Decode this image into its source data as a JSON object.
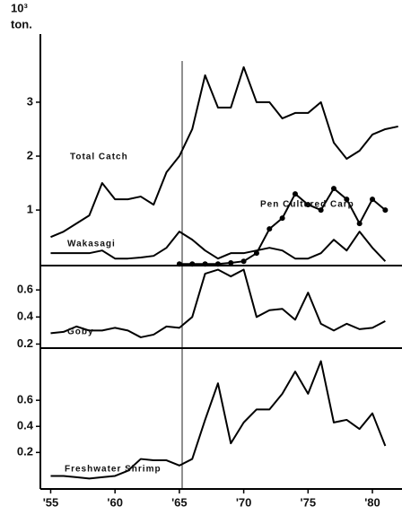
{
  "chart_data": [
    {
      "type": "line",
      "y_unit": "10³",
      "y_unit_2": "ton.",
      "x": [
        1955,
        1956,
        1957,
        1958,
        1959,
        1960,
        1961,
        1962,
        1963,
        1964,
        1965,
        1966,
        1967,
        1968,
        1969,
        1970,
        1971,
        1972,
        1973,
        1974,
        1975,
        1976,
        1977,
        1978,
        1979,
        1980,
        1981,
        1982
      ],
      "xlim": [
        1954.2,
        1982.3
      ],
      "ylim": [
        -0.03,
        4.23
      ],
      "yticks": [
        1,
        2,
        3
      ],
      "series": [
        {
          "name": "Total Catch",
          "color": "#000000",
          "values": [
            0.5,
            0.6,
            0.75,
            0.9,
            1.5,
            1.2,
            1.2,
            1.25,
            1.1,
            1.7,
            2.0,
            2.5,
            3.5,
            2.9,
            2.9,
            3.65,
            3.0,
            3.0,
            2.7,
            2.8,
            2.8,
            3.0,
            2.25,
            1.95,
            2.1,
            2.4,
            2.5,
            2.55
          ]
        },
        {
          "name": "Wakasagi",
          "color": "#000000",
          "values": [
            0.2,
            0.2,
            0.2,
            0.2,
            0.25,
            0.1,
            0.1,
            0.12,
            0.15,
            0.3,
            0.6,
            0.45,
            0.25,
            0.1,
            0.2,
            0.2,
            0.25,
            0.3,
            0.25,
            0.1,
            0.1,
            0.2,
            0.45,
            0.25,
            0.6,
            0.3,
            0.05,
            null
          ]
        },
        {
          "name": "Pen Cultured Carp",
          "color": "#000000",
          "markers": true,
          "values": [
            null,
            null,
            null,
            null,
            null,
            null,
            null,
            null,
            null,
            null,
            0,
            0,
            0,
            0,
            0.02,
            0.05,
            0.2,
            0.65,
            0.85,
            1.3,
            1.1,
            1.0,
            1.4,
            1.2,
            0.75,
            1.2,
            1.0,
            null
          ]
        }
      ]
    },
    {
      "type": "line",
      "x": [
        1955,
        1956,
        1957,
        1958,
        1959,
        1960,
        1961,
        1962,
        1963,
        1964,
        1965,
        1966,
        1967,
        1968,
        1969,
        1970,
        1971,
        1972,
        1973,
        1974,
        1975,
        1976,
        1977,
        1978,
        1979,
        1980,
        1981,
        1982
      ],
      "xlim": [
        1954.2,
        1982.3
      ],
      "ylim": [
        0.17,
        0.78
      ],
      "yticks": [
        0.2,
        0.4,
        0.6
      ],
      "series": [
        {
          "name": "Goby",
          "color": "#000000",
          "values": [
            0.28,
            0.29,
            0.33,
            0.3,
            0.3,
            0.32,
            0.3,
            0.25,
            0.27,
            0.33,
            0.32,
            0.4,
            0.72,
            0.75,
            0.7,
            0.75,
            0.4,
            0.45,
            0.46,
            0.38,
            0.58,
            0.35,
            0.3,
            0.35,
            0.31,
            0.32,
            0.37,
            null
          ]
        }
      ]
    },
    {
      "type": "line",
      "x": [
        1955,
        1956,
        1957,
        1958,
        1959,
        1960,
        1961,
        1962,
        1963,
        1964,
        1965,
        1966,
        1967,
        1968,
        1969,
        1970,
        1971,
        1972,
        1973,
        1974,
        1975,
        1976,
        1977,
        1978,
        1979,
        1980,
        1981,
        1982
      ],
      "xlim": [
        1954.2,
        1982.3
      ],
      "ylim": [
        -0.08,
        1.0
      ],
      "yticks": [
        0.2,
        0.4,
        0.6
      ],
      "xticks": [
        {
          "value": 1955,
          "label": "'55"
        },
        {
          "value": 1960,
          "label": "'60"
        },
        {
          "value": 1965,
          "label": "'65"
        },
        {
          "value": 1970,
          "label": "'70"
        },
        {
          "value": 1975,
          "label": "'75"
        },
        {
          "value": 1980,
          "label": "'80"
        }
      ],
      "series": [
        {
          "name": "Freshwater Shrimp",
          "color": "#000000",
          "values": [
            0.02,
            0.02,
            0.01,
            0.0,
            0.01,
            0.02,
            0.06,
            0.15,
            0.14,
            0.14,
            0.1,
            0.15,
            0.45,
            0.73,
            0.27,
            0.43,
            0.53,
            0.53,
            0.65,
            0.82,
            0.65,
            0.9,
            0.43,
            0.45,
            0.38,
            0.5,
            0.25,
            null
          ]
        }
      ]
    }
  ]
}
